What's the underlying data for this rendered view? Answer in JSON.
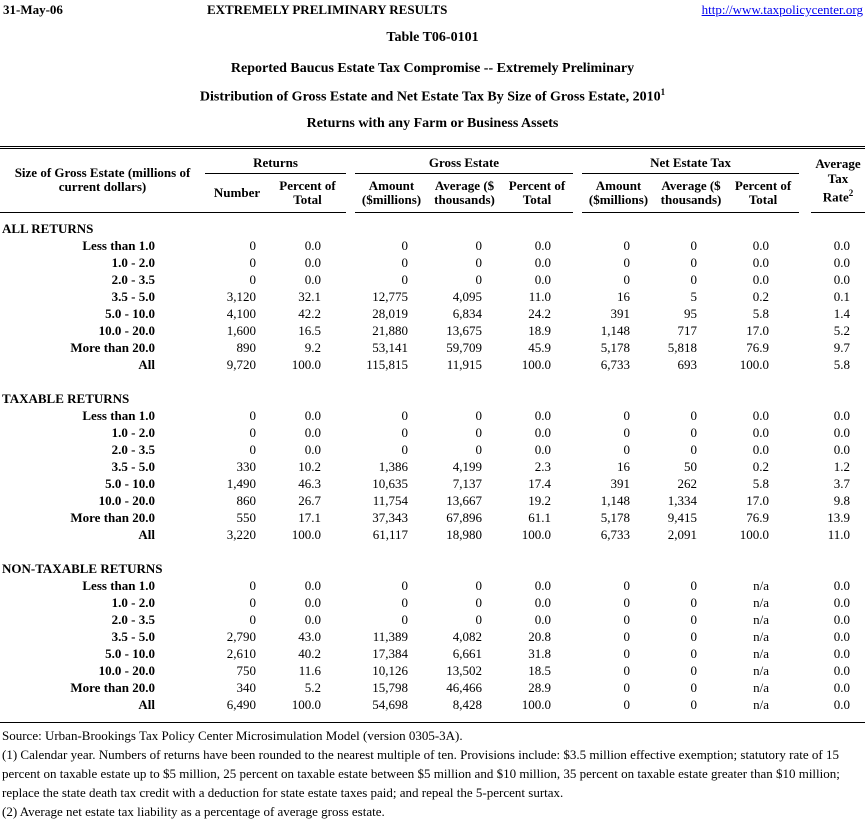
{
  "page_header": {
    "date": "31-May-06",
    "status": "EXTREMELY PRELIMINARY RESULTS",
    "url": "http://www.taxpolicycenter.org"
  },
  "titles": {
    "table_number": "Table T06-0101",
    "subtitle1": "Reported Baucus Estate Tax Compromise -- Extremely Preliminary",
    "subtitle2": "Distribution of Gross Estate and Net Estate Tax By Size of Gross Estate, 2010",
    "subtitle2_sup": "1",
    "subtitle3": "Returns with any Farm or Business Assets"
  },
  "colors": {
    "link_blue": "#0000EE",
    "text": "#000000",
    "background": "#FFFFFF"
  },
  "table": {
    "row_header_label": "Size of Gross Estate (millions of current dollars)",
    "groups": [
      "Returns",
      "Gross Estate",
      "Net Estate Tax"
    ],
    "sub_headers": [
      "Number",
      "Percent of Total",
      "Amount ($millions)",
      "Average ($ thousands)",
      "Percent of Total",
      "Amount ($millions)",
      "Average ($ thousands)",
      "Percent of Total"
    ],
    "avg_header": {
      "line1": "Average",
      "line2": "Tax Rate",
      "sup": "2"
    },
    "sections": [
      {
        "name": "ALL RETURNS",
        "rows": [
          {
            "label": "Less than 1.0",
            "values": [
              "0",
              "0.0",
              "0",
              "0",
              "0.0",
              "0",
              "0",
              "0.0",
              "0.0"
            ]
          },
          {
            "label": "1.0 - 2.0",
            "values": [
              "0",
              "0.0",
              "0",
              "0",
              "0.0",
              "0",
              "0",
              "0.0",
              "0.0"
            ]
          },
          {
            "label": "2.0 - 3.5",
            "values": [
              "0",
              "0.0",
              "0",
              "0",
              "0.0",
              "0",
              "0",
              "0.0",
              "0.0"
            ]
          },
          {
            "label": "3.5 - 5.0",
            "values": [
              "3,120",
              "32.1",
              "12,775",
              "4,095",
              "11.0",
              "16",
              "5",
              "0.2",
              "0.1"
            ]
          },
          {
            "label": "5.0 - 10.0",
            "values": [
              "4,100",
              "42.2",
              "28,019",
              "6,834",
              "24.2",
              "391",
              "95",
              "5.8",
              "1.4"
            ]
          },
          {
            "label": "10.0 - 20.0",
            "values": [
              "1,600",
              "16.5",
              "21,880",
              "13,675",
              "18.9",
              "1,148",
              "717",
              "17.0",
              "5.2"
            ]
          },
          {
            "label": "More than 20.0",
            "values": [
              "890",
              "9.2",
              "53,141",
              "59,709",
              "45.9",
              "5,178",
              "5,818",
              "76.9",
              "9.7"
            ]
          },
          {
            "label": "All",
            "values": [
              "9,720",
              "100.0",
              "115,815",
              "11,915",
              "100.0",
              "6,733",
              "693",
              "100.0",
              "5.8"
            ]
          }
        ]
      },
      {
        "name": "TAXABLE RETURNS",
        "rows": [
          {
            "label": "Less than 1.0",
            "values": [
              "0",
              "0.0",
              "0",
              "0",
              "0.0",
              "0",
              "0",
              "0.0",
              "0.0"
            ]
          },
          {
            "label": "1.0 - 2.0",
            "values": [
              "0",
              "0.0",
              "0",
              "0",
              "0.0",
              "0",
              "0",
              "0.0",
              "0.0"
            ]
          },
          {
            "label": "2.0 - 3.5",
            "values": [
              "0",
              "0.0",
              "0",
              "0",
              "0.0",
              "0",
              "0",
              "0.0",
              "0.0"
            ]
          },
          {
            "label": "3.5 - 5.0",
            "values": [
              "330",
              "10.2",
              "1,386",
              "4,199",
              "2.3",
              "16",
              "50",
              "0.2",
              "1.2"
            ]
          },
          {
            "label": "5.0 - 10.0",
            "values": [
              "1,490",
              "46.3",
              "10,635",
              "7,137",
              "17.4",
              "391",
              "262",
              "5.8",
              "3.7"
            ]
          },
          {
            "label": "10.0 - 20.0",
            "values": [
              "860",
              "26.7",
              "11,754",
              "13,667",
              "19.2",
              "1,148",
              "1,334",
              "17.0",
              "9.8"
            ]
          },
          {
            "label": "More than 20.0",
            "values": [
              "550",
              "17.1",
              "37,343",
              "67,896",
              "61.1",
              "5,178",
              "9,415",
              "76.9",
              "13.9"
            ]
          },
          {
            "label": "All",
            "values": [
              "3,220",
              "100.0",
              "61,117",
              "18,980",
              "100.0",
              "6,733",
              "2,091",
              "100.0",
              "11.0"
            ]
          }
        ]
      },
      {
        "name": "NON-TAXABLE RETURNS",
        "rows": [
          {
            "label": "Less than 1.0",
            "values": [
              "0",
              "0.0",
              "0",
              "0",
              "0.0",
              "0",
              "0",
              "n/a",
              "0.0"
            ]
          },
          {
            "label": "1.0 - 2.0",
            "values": [
              "0",
              "0.0",
              "0",
              "0",
              "0.0",
              "0",
              "0",
              "n/a",
              "0.0"
            ]
          },
          {
            "label": "2.0 - 3.5",
            "values": [
              "0",
              "0.0",
              "0",
              "0",
              "0.0",
              "0",
              "0",
              "n/a",
              "0.0"
            ]
          },
          {
            "label": "3.5 - 5.0",
            "values": [
              "2,790",
              "43.0",
              "11,389",
              "4,082",
              "20.8",
              "0",
              "0",
              "n/a",
              "0.0"
            ]
          },
          {
            "label": "5.0 - 10.0",
            "values": [
              "2,610",
              "40.2",
              "17,384",
              "6,661",
              "31.8",
              "0",
              "0",
              "n/a",
              "0.0"
            ]
          },
          {
            "label": "10.0 - 20.0",
            "values": [
              "750",
              "11.6",
              "10,126",
              "13,502",
              "18.5",
              "0",
              "0",
              "n/a",
              "0.0"
            ]
          },
          {
            "label": "More than 20.0",
            "values": [
              "340",
              "5.2",
              "15,798",
              "46,466",
              "28.9",
              "0",
              "0",
              "n/a",
              "0.0"
            ]
          },
          {
            "label": "All",
            "values": [
              "6,490",
              "100.0",
              "54,698",
              "8,428",
              "100.0",
              "0",
              "0",
              "n/a",
              "0.0"
            ]
          }
        ]
      }
    ]
  },
  "footnotes": {
    "source": "Source: Urban-Brookings Tax Policy Center Microsimulation Model (version 0305-3A).",
    "note1": "(1) Calendar year. Numbers of returns have been rounded to the nearest multiple of ten. Provisions include: $3.5 million effective exemption; statutory rate of 15 percent on taxable estate up to $5 million, 25 percent on taxable estate between $5 million and $10 million, 35 percent on taxable estate greater than $10 million; replace the state death tax credit with a deduction for state estate taxes paid; and repeal the 5-percent surtax.",
    "note2": "(2) Average net estate tax liability as a percentage of average gross estate."
  }
}
